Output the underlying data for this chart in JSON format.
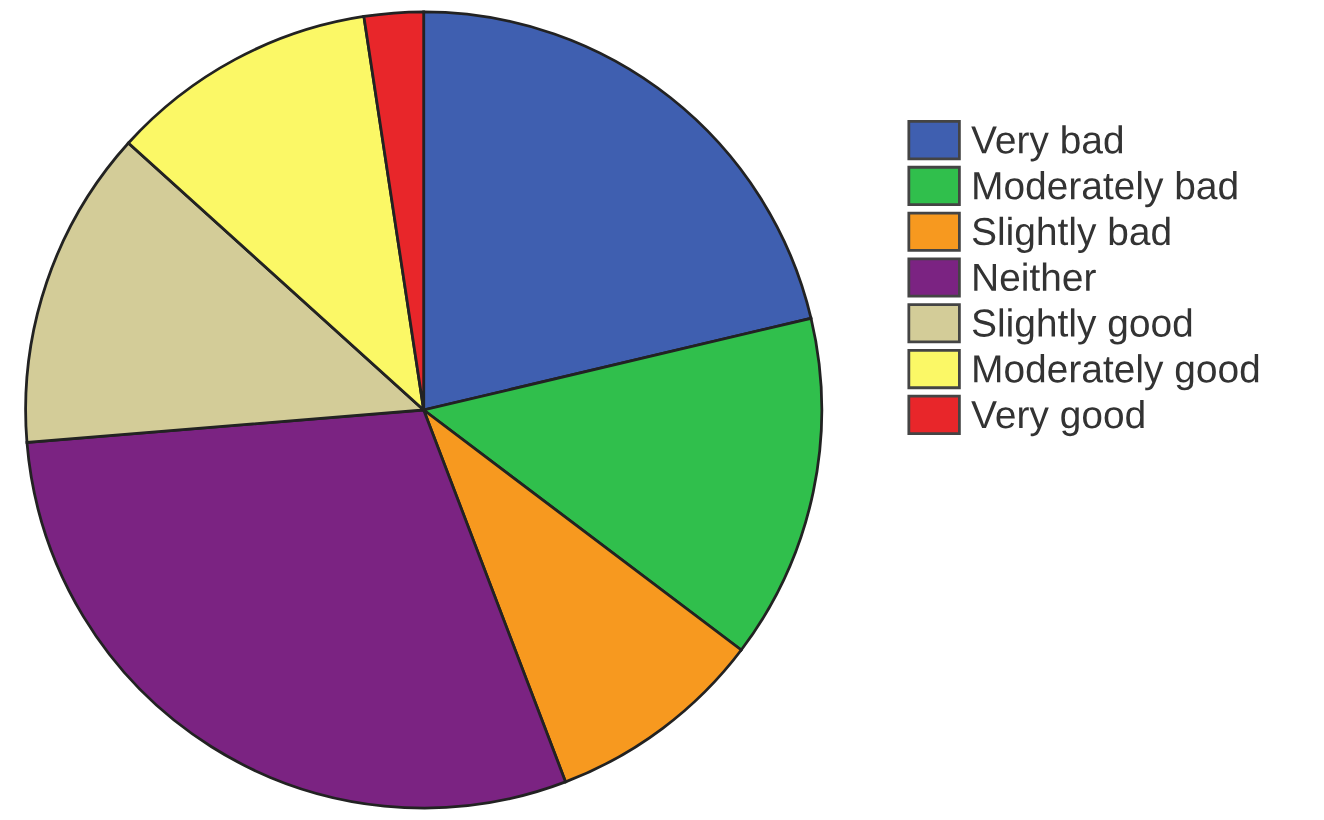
{
  "chart_data": {
    "type": "pie",
    "categories": [
      "Very bad",
      "Moderately bad",
      "Slightly bad",
      "Neither",
      "Slightly good",
      "Moderately good",
      "Very good"
    ],
    "values": [
      21.3,
      14.0,
      8.9,
      29.5,
      13.0,
      10.9,
      2.4
    ],
    "colors": [
      "#3f5fb0",
      "#30bf4c",
      "#f7991f",
      "#7b2382",
      "#d3cc98",
      "#fbf866",
      "#e8262a"
    ],
    "legend": "right"
  }
}
